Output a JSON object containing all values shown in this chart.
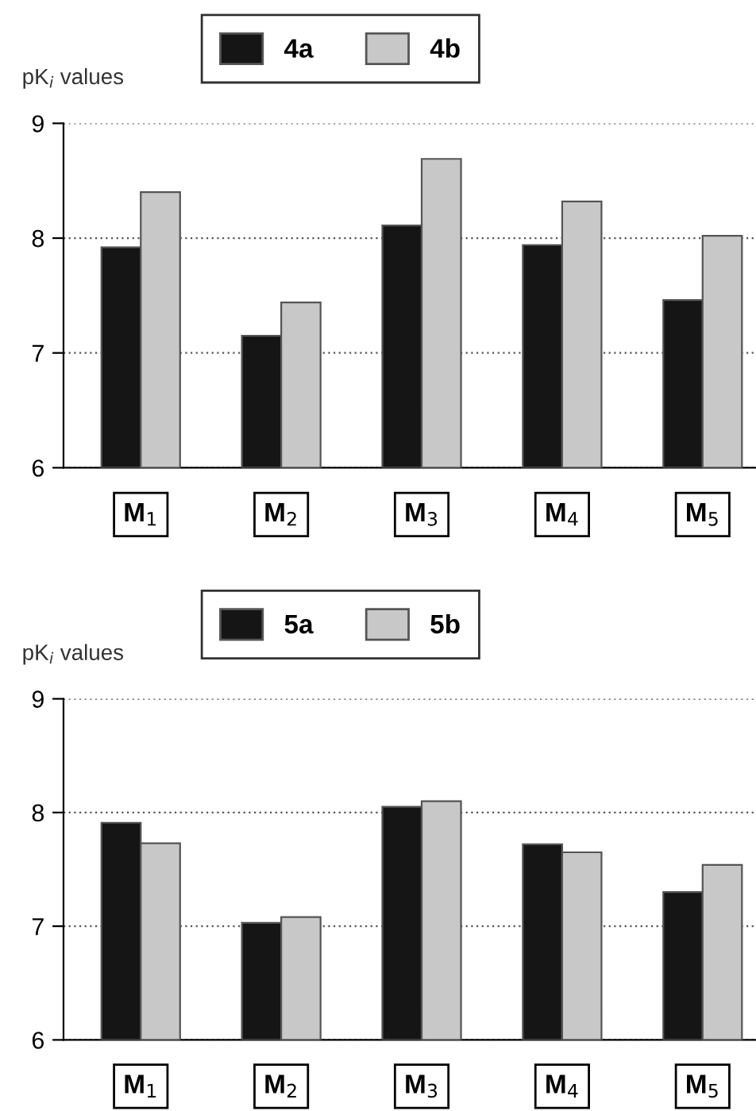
{
  "chart_data": [
    {
      "type": "bar",
      "ylabel": "pK$_{i}$ values",
      "categories": [
        "M$_{1}$",
        "M$_{2}$",
        "M$_{3}$",
        "M$_{4}$",
        "M$_{5}$"
      ],
      "series": [
        {
          "name": "4a",
          "color": "#151515",
          "values": [
            7.92,
            7.15,
            8.11,
            7.94,
            7.46
          ]
        },
        {
          "name": "4b",
          "color": "#c8c8c8",
          "values": [
            8.4,
            7.44,
            8.69,
            8.32,
            8.02
          ]
        }
      ],
      "ylim": [
        6,
        9
      ],
      "yticks": [
        6,
        7,
        8,
        9
      ],
      "grid": "y",
      "legend": "top"
    },
    {
      "type": "bar",
      "ylabel": "pK$_{i}$ values",
      "categories": [
        "M$_{1}$",
        "M$_{2}$",
        "M$_{3}$",
        "M$_{4}$",
        "M$_{5}$"
      ],
      "series": [
        {
          "name": "5a",
          "color": "#151515",
          "values": [
            7.91,
            7.03,
            8.05,
            7.72,
            7.3
          ]
        },
        {
          "name": "5b",
          "color": "#c8c8c8",
          "values": [
            7.73,
            7.08,
            8.1,
            7.65,
            7.54
          ]
        }
      ],
      "ylim": [
        6,
        9
      ],
      "yticks": [
        6,
        7,
        8,
        9
      ],
      "grid": "y",
      "legend": "top"
    }
  ]
}
